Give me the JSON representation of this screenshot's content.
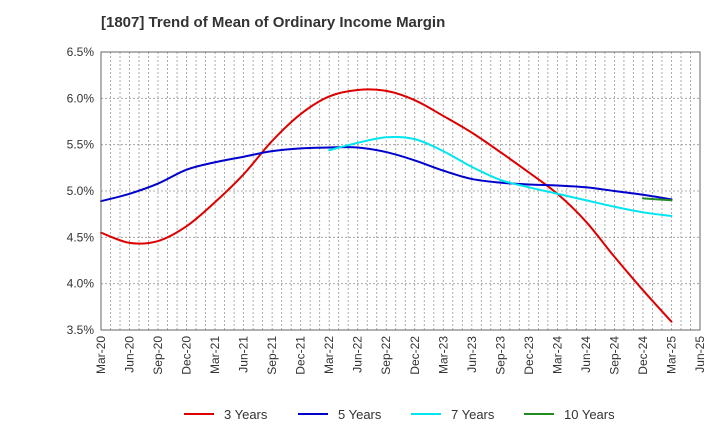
{
  "chart_data": {
    "type": "line",
    "title": "[1807]  Trend of Mean of Ordinary Income Margin",
    "xlabel": "",
    "ylabel": "",
    "ylim": [
      3.5,
      6.5
    ],
    "yticks": [
      "3.5%",
      "4.0%",
      "4.5%",
      "5.0%",
      "5.5%",
      "6.0%",
      "6.5%"
    ],
    "ytick_values": [
      3.5,
      4.0,
      4.5,
      5.0,
      5.5,
      6.0,
      6.5
    ],
    "x_ticks": [
      "Mar-20",
      "Jun-20",
      "Sep-20",
      "Dec-20",
      "Mar-21",
      "Jun-21",
      "Sep-21",
      "Dec-21",
      "Mar-22",
      "Jun-22",
      "Sep-22",
      "Dec-22",
      "Mar-23",
      "Jun-23",
      "Sep-23",
      "Dec-23",
      "Mar-24",
      "Jun-24",
      "Sep-24",
      "Dec-24",
      "Mar-25",
      "Jun-25"
    ],
    "grid": true,
    "legend_position": "bottom",
    "series": [
      {
        "name": "3 Years",
        "color": "#dd0000",
        "x": [
          "Mar-20",
          "Jun-20",
          "Sep-20",
          "Dec-20",
          "Mar-21",
          "Jun-21",
          "Sep-21",
          "Dec-21",
          "Mar-22",
          "Jun-22",
          "Sep-22",
          "Dec-22",
          "Mar-23",
          "Jun-23",
          "Sep-23",
          "Dec-23",
          "Mar-24",
          "Jun-24",
          "Sep-24",
          "Dec-24",
          "Mar-25"
        ],
        "values": [
          4.55,
          4.44,
          4.46,
          4.62,
          4.88,
          5.18,
          5.54,
          5.83,
          6.02,
          6.09,
          6.08,
          5.98,
          5.81,
          5.63,
          5.42,
          5.2,
          4.97,
          4.67,
          4.29,
          3.93,
          3.59
        ]
      },
      {
        "name": "5 Years",
        "color": "#0000cc",
        "x": [
          "Mar-20",
          "Jun-20",
          "Sep-20",
          "Dec-20",
          "Mar-21",
          "Jun-21",
          "Sep-21",
          "Dec-21",
          "Mar-22",
          "Jun-22",
          "Sep-22",
          "Dec-22",
          "Mar-23",
          "Jun-23",
          "Sep-23",
          "Dec-23",
          "Mar-24",
          "Jun-24",
          "Sep-24",
          "Dec-24",
          "Mar-25"
        ],
        "values": [
          4.89,
          4.97,
          5.08,
          5.23,
          5.31,
          5.37,
          5.43,
          5.46,
          5.47,
          5.47,
          5.42,
          5.33,
          5.22,
          5.13,
          5.09,
          5.07,
          5.06,
          5.04,
          5.0,
          4.96,
          4.91
        ]
      },
      {
        "name": "7 Years",
        "color": "#00e5ee",
        "x": [
          "Mar-22",
          "Jun-22",
          "Sep-22",
          "Dec-22",
          "Mar-23",
          "Jun-23",
          "Sep-23",
          "Dec-23",
          "Mar-24",
          "Jun-24",
          "Sep-24",
          "Dec-24",
          "Mar-25"
        ],
        "values": [
          5.44,
          5.52,
          5.58,
          5.56,
          5.43,
          5.26,
          5.12,
          5.04,
          4.97,
          4.9,
          4.83,
          4.77,
          4.73
        ]
      },
      {
        "name": "10 Years",
        "color": "#228b22",
        "x": [
          "Dec-24",
          "Mar-25"
        ],
        "values": [
          4.92,
          4.9
        ]
      }
    ]
  }
}
